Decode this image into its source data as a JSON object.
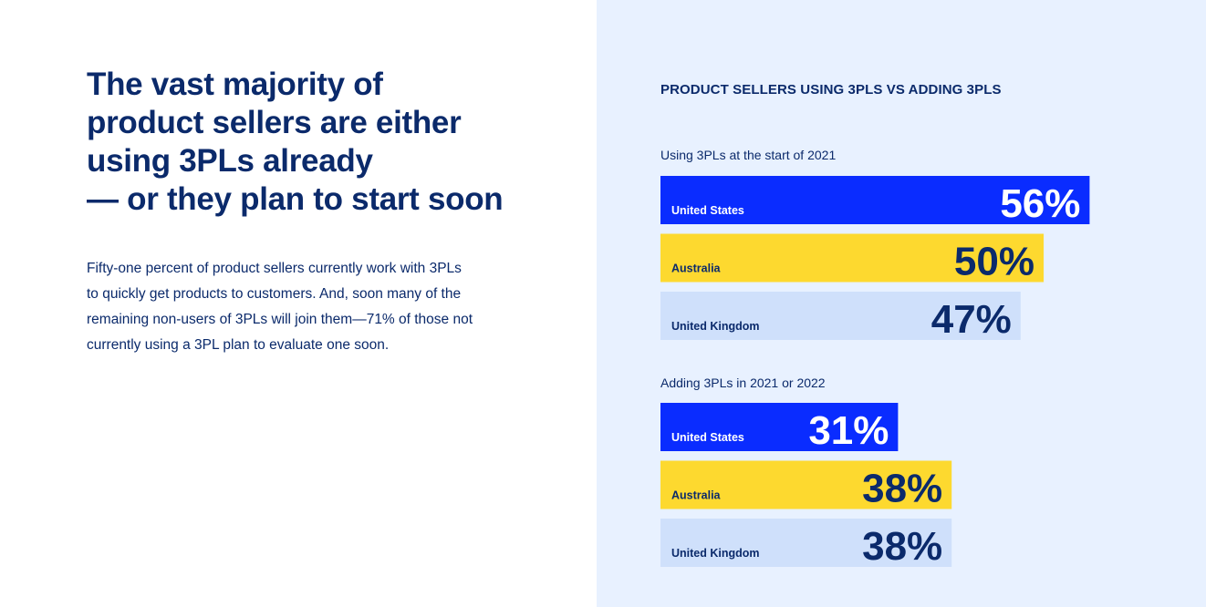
{
  "headline": {
    "lines": [
      "The vast majority of",
      "product sellers are either",
      "using 3PLs already",
      "— or they plan to start soon"
    ]
  },
  "body": {
    "lines": [
      "Fifty-one percent of product sellers currently work with 3PLs",
      "to quickly get products to customers. And, soon many of the",
      "remaining non-users of 3PLs will join them—71% of those not",
      "currently using a 3PL plan to evaluate one soon."
    ]
  },
  "colors": {
    "navy": "#0b2a6b",
    "united_states": "#0a2cff",
    "australia": "#fdd92f",
    "united_kingdom": "#cfe0fb",
    "panel_background": "#e8f1ff"
  },
  "chart_data": {
    "type": "bar",
    "orientation": "horizontal",
    "title": "PRODUCT SELLERS USING 3PLS VS ADDING 3PLS",
    "unit": "%",
    "groups": [
      {
        "label": "Using 3PLs at the start of 2021",
        "bars": [
          {
            "country": "United States",
            "value": 56,
            "label": "56%"
          },
          {
            "country": "Australia",
            "value": 50,
            "label": "50%"
          },
          {
            "country": "United Kingdom",
            "value": 47,
            "label": "47%"
          }
        ]
      },
      {
        "label": "Adding 3PLs in 2021 or 2022",
        "bars": [
          {
            "country": "United States",
            "value": 31,
            "label": "31%"
          },
          {
            "country": "Australia",
            "value": 38,
            "label": "38%"
          },
          {
            "country": "United Kingdom",
            "value": 38,
            "label": "38%"
          }
        ]
      }
    ]
  }
}
